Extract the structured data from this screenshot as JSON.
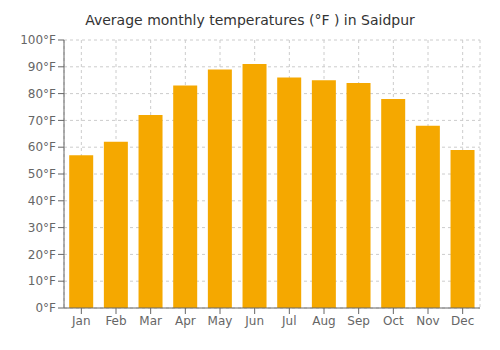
{
  "chart_data": {
    "type": "bar",
    "title": "Average monthly temperatures (°F ) in Saidpur",
    "categories": [
      "Jan",
      "Feb",
      "Mar",
      "Apr",
      "May",
      "Jun",
      "Jul",
      "Aug",
      "Sep",
      "Oct",
      "Nov",
      "Dec"
    ],
    "values": [
      57,
      62,
      72,
      83,
      89,
      91,
      86,
      85,
      84,
      78,
      68,
      59
    ],
    "color": "#F5A800",
    "ylim": [
      0,
      100
    ],
    "yticks": [
      {
        "value": 0,
        "label": "0°F"
      },
      {
        "value": 10,
        "label": "10°F"
      },
      {
        "value": 20,
        "label": "20°F"
      },
      {
        "value": 30,
        "label": "30°F"
      },
      {
        "value": 40,
        "label": "40°F"
      },
      {
        "value": 50,
        "label": "50°F"
      },
      {
        "value": 60,
        "label": "60°F"
      },
      {
        "value": 70,
        "label": "70°F"
      },
      {
        "value": 80,
        "label": "80°F"
      },
      {
        "value": 90,
        "label": "90°F"
      },
      {
        "value": 100,
        "label": "100°F"
      }
    ],
    "grid": true
  }
}
